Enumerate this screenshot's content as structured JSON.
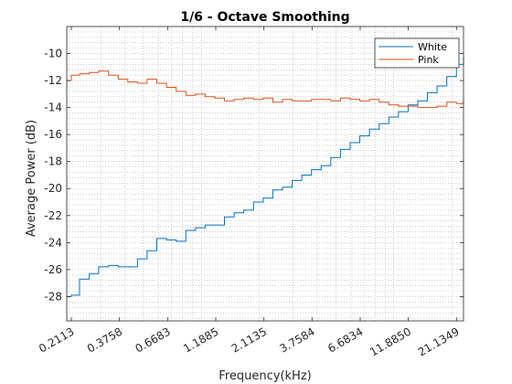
{
  "chart_data": {
    "type": "line",
    "step": true,
    "title": "1/6 - Octave Smoothing",
    "xlabel": "Frequency(kHz)",
    "ylabel": "Average Power (dB)",
    "x_scale": "log",
    "xlim": [
      0.2,
      23.0
    ],
    "ylim": [
      -29.8,
      -8.0
    ],
    "grid": "minor-dotted",
    "legend": "top-right",
    "x_ticks": [
      0.2113,
      0.3758,
      0.6683,
      1.1885,
      2.1135,
      3.7584,
      6.6834,
      11.885,
      21.1349
    ],
    "x_tick_labels": [
      "0.2113",
      "0.3758",
      "0.6683",
      "1.1885",
      "2.1135",
      "3.7584",
      "6.6834",
      "11.8850",
      "21.1349"
    ],
    "y_ticks": [
      -28,
      -26,
      -24,
      -22,
      -20,
      -18,
      -16,
      -14,
      -12,
      -10
    ],
    "y_tick_labels": [
      "-28",
      "-26",
      "-24",
      "-22",
      "-20",
      "-18",
      "-16",
      "-14",
      "-12",
      "-10"
    ],
    "x": [
      0.2,
      0.2113,
      0.233,
      0.262,
      0.293,
      0.33,
      0.37,
      0.415,
      0.466,
      0.523,
      0.587,
      0.659,
      0.74,
      0.831,
      0.932,
      1.047,
      1.175,
      1.319,
      1.481,
      1.662,
      1.866,
      2.095,
      2.351,
      2.639,
      2.963,
      3.326,
      3.733,
      4.19,
      4.704,
      5.28,
      5.927,
      6.653,
      7.468,
      8.383,
      9.41,
      10.56,
      11.86,
      13.31,
      14.94,
      16.77,
      18.82,
      21.13,
      23.0
    ],
    "series": [
      {
        "name": "White",
        "color": "#0072BD",
        "values": [
          -28.0,
          -27.9,
          -26.7,
          -26.3,
          -25.8,
          -25.7,
          -25.8,
          -25.8,
          -25.2,
          -24.6,
          -23.7,
          -23.8,
          -23.9,
          -23.1,
          -22.9,
          -22.7,
          -22.7,
          -22.1,
          -21.8,
          -21.6,
          -21.0,
          -20.7,
          -20.1,
          -19.9,
          -19.4,
          -19.0,
          -18.6,
          -18.3,
          -17.7,
          -17.1,
          -16.6,
          -16.1,
          -15.6,
          -15.2,
          -14.7,
          -14.3,
          -13.8,
          -13.5,
          -12.9,
          -12.4,
          -11.7,
          -10.8,
          -10.2
        ]
      },
      {
        "name": "Pink",
        "color": "#D95319",
        "values": [
          -12.0,
          -11.6,
          -11.5,
          -11.4,
          -11.3,
          -11.6,
          -11.9,
          -12.1,
          -12.2,
          -11.9,
          -12.2,
          -12.5,
          -12.8,
          -13.1,
          -13.0,
          -13.2,
          -13.3,
          -13.5,
          -13.4,
          -13.3,
          -13.4,
          -13.3,
          -13.6,
          -13.4,
          -13.5,
          -13.5,
          -13.4,
          -13.4,
          -13.5,
          -13.3,
          -13.4,
          -13.5,
          -13.4,
          -13.6,
          -13.8,
          -13.9,
          -13.9,
          -14.0,
          -14.0,
          -13.9,
          -13.6,
          -13.7,
          -13.4
        ]
      }
    ]
  }
}
